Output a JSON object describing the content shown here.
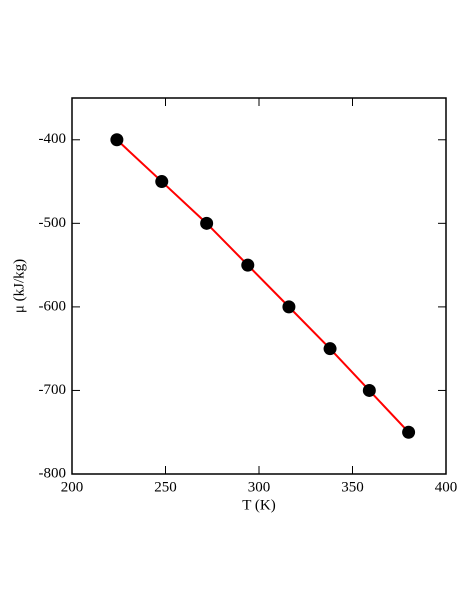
{
  "chart_data": {
    "type": "scatter",
    "x_label": "T (K)",
    "y_label": "μ (kJ/kg)",
    "x": [
      224,
      248,
      272,
      294,
      316,
      338,
      359,
      380
    ],
    "series": [
      {
        "values": [
          -400,
          -450,
          -500,
          -550,
          -600,
          -650,
          -700,
          -750
        ],
        "color": "#000000",
        "line_color": "#ff0000"
      }
    ],
    "xlim": [
      200,
      400
    ],
    "xticks": [
      200,
      250,
      300,
      350,
      400
    ],
    "ylim": [
      -800,
      -350
    ],
    "yticks": [
      -800,
      -700,
      -600,
      -500,
      -400
    ],
    "grid": false
  }
}
